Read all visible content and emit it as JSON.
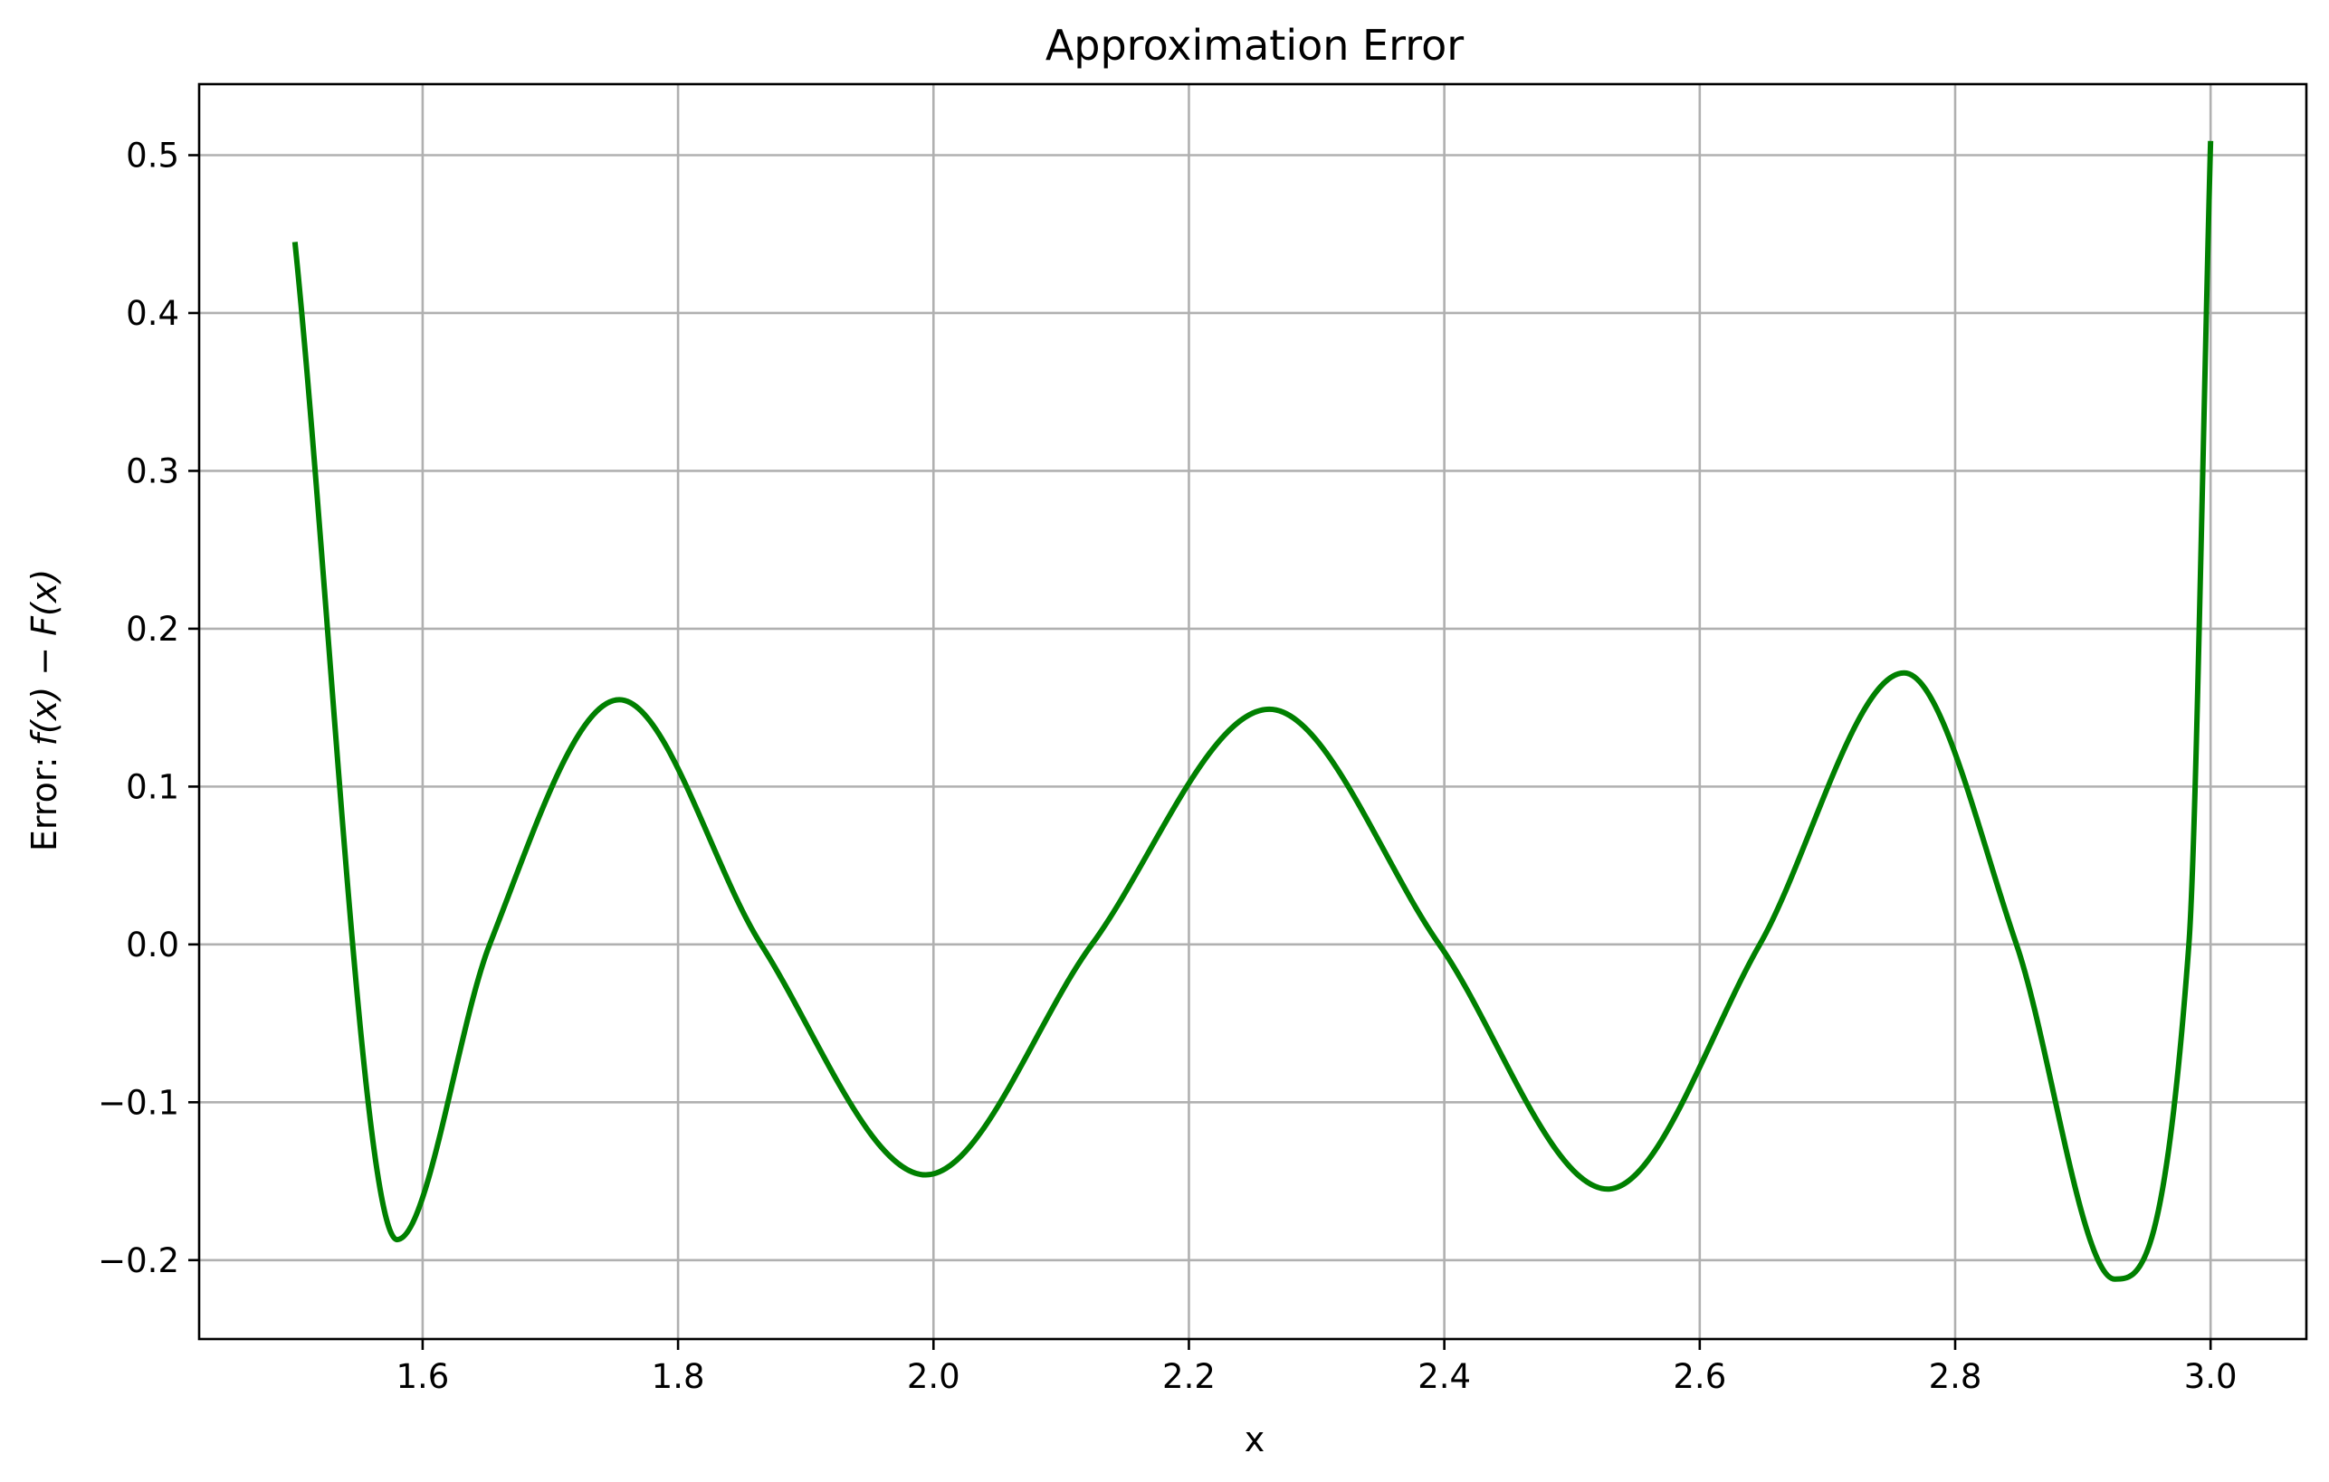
{
  "chart_data": {
    "type": "line",
    "title": "Approximation Error",
    "xlabel": "x",
    "ylabel_prefix": "Error: ",
    "ylabel_math": "f(x) − F(x)",
    "xlim": [
      1.425,
      3.075
    ],
    "ylim": [
      -0.25,
      0.545
    ],
    "grid": true,
    "line_color": "#008000",
    "x_ticks": [
      1.6,
      1.8,
      2.0,
      2.2,
      2.4,
      2.6,
      2.8,
      3.0
    ],
    "x_tick_labels": [
      "1.6",
      "1.8",
      "2.0",
      "2.2",
      "2.4",
      "2.6",
      "2.8",
      "3.0"
    ],
    "y_ticks": [
      -0.2,
      -0.1,
      0.0,
      0.1,
      0.2,
      0.3,
      0.4,
      0.5
    ],
    "y_tick_labels": [
      "−0.2",
      "−0.1",
      "0.0",
      "0.1",
      "0.2",
      "0.3",
      "0.4",
      "0.5"
    ],
    "series": [
      {
        "points": [
          [
            1.5,
            0.445
          ],
          [
            1.58,
            -0.187
          ],
          [
            1.6525,
            0.0
          ],
          [
            1.754,
            0.155
          ],
          [
            1.865,
            0.0
          ],
          [
            1.994,
            -0.146
          ],
          [
            2.124,
            0.0
          ],
          [
            2.263,
            0.149
          ],
          [
            2.396,
            0.0
          ],
          [
            2.528,
            -0.155
          ],
          [
            2.647,
            0.0
          ],
          [
            2.76,
            0.172
          ],
          [
            2.848,
            0.0
          ],
          [
            2.925,
            -0.212
          ],
          [
            2.983,
            0.0
          ],
          [
            3.0,
            0.509
          ]
        ]
      }
    ]
  }
}
